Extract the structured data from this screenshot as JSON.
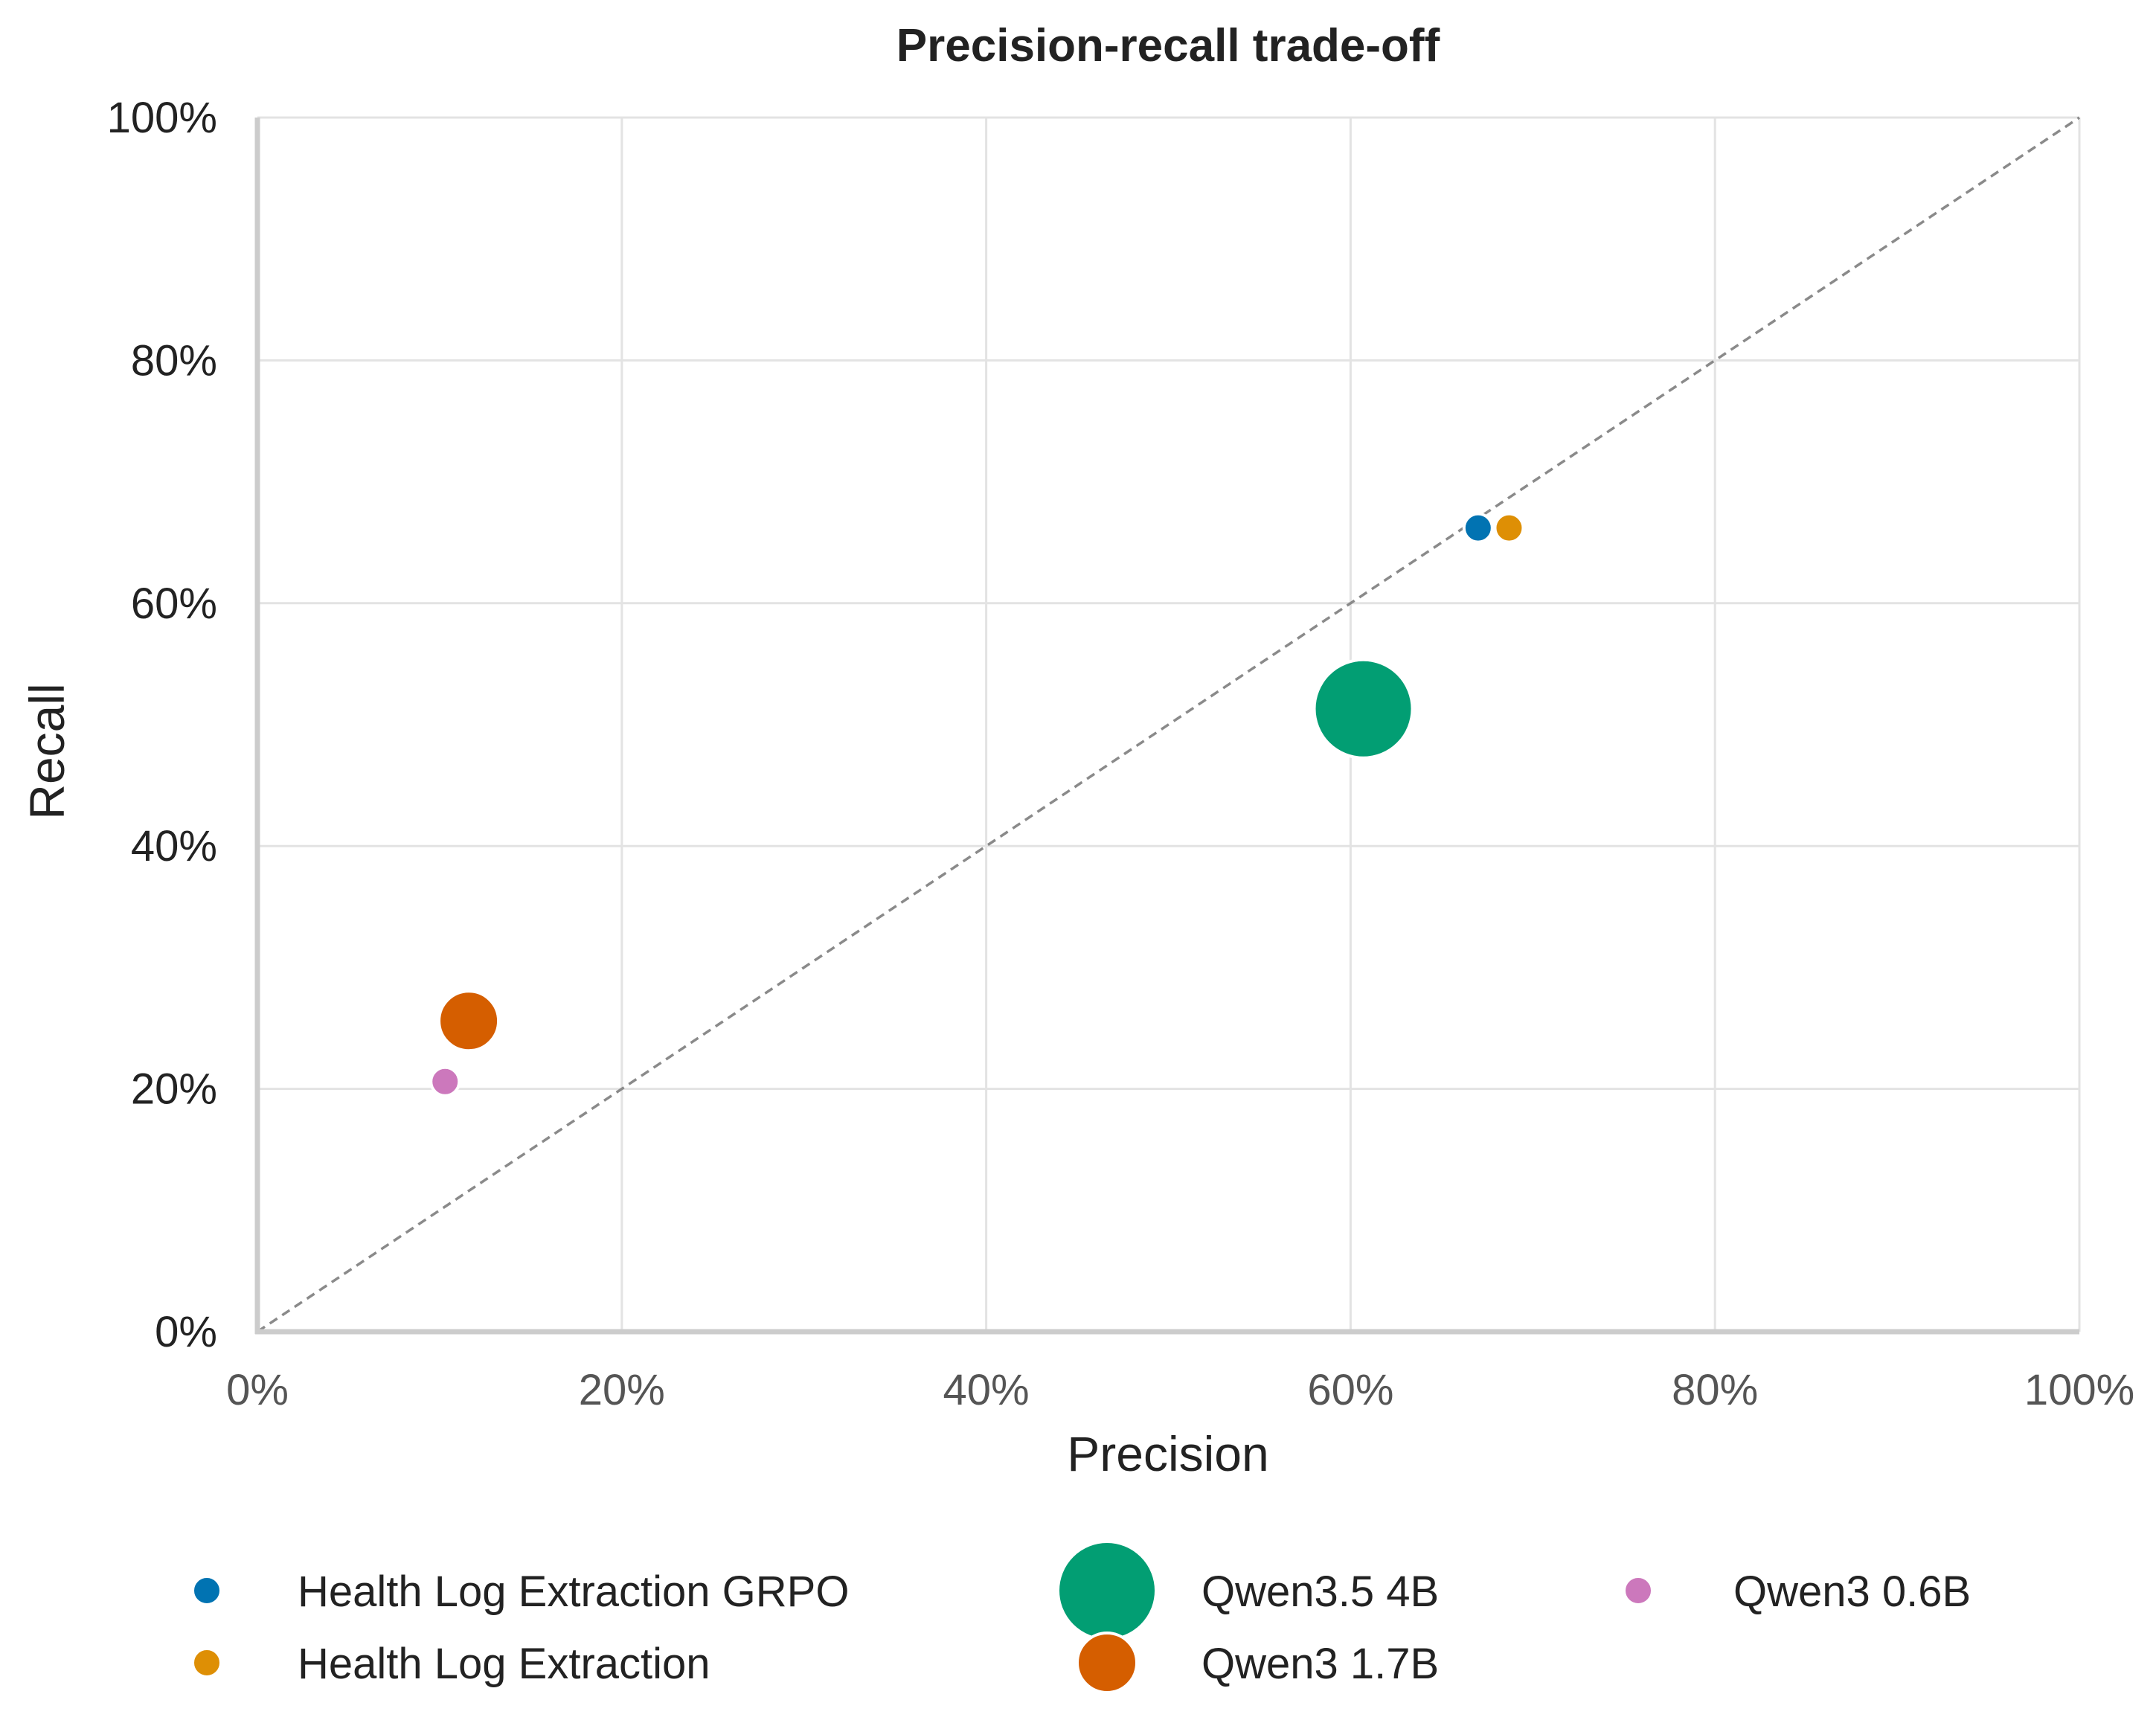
{
  "chart_data": {
    "type": "scatter",
    "title": "Precision-recall trade-off",
    "xlabel": "Precision",
    "ylabel": "Recall",
    "xlim": [
      0,
      1
    ],
    "ylim": [
      0,
      1
    ],
    "x_ticks": [
      "0%",
      "20%",
      "40%",
      "60%",
      "80%",
      "100%"
    ],
    "y_ticks": [
      "0%",
      "20%",
      "40%",
      "60%",
      "80%",
      "100%"
    ],
    "grid": true,
    "reference_line": "y = x (dashed)",
    "legend_position": "bottom",
    "series": [
      {
        "name": "Health Log Extraction GRPO",
        "color": "#0173b2",
        "x": 0.67,
        "y": 0.662,
        "size": "small"
      },
      {
        "name": "Health Log Extraction",
        "color": "#de8f05",
        "x": 0.687,
        "y": 0.662,
        "size": "small"
      },
      {
        "name": "Qwen3.5 4B",
        "color": "#029e73",
        "x": 0.607,
        "y": 0.513,
        "size": "large"
      },
      {
        "name": "Qwen3 1.7B",
        "color": "#d55e00",
        "x": 0.116,
        "y": 0.256,
        "size": "medium"
      },
      {
        "name": "Qwen3 0.6B",
        "color": "#cc78bc",
        "x": 0.103,
        "y": 0.206,
        "size": "small"
      }
    ]
  }
}
